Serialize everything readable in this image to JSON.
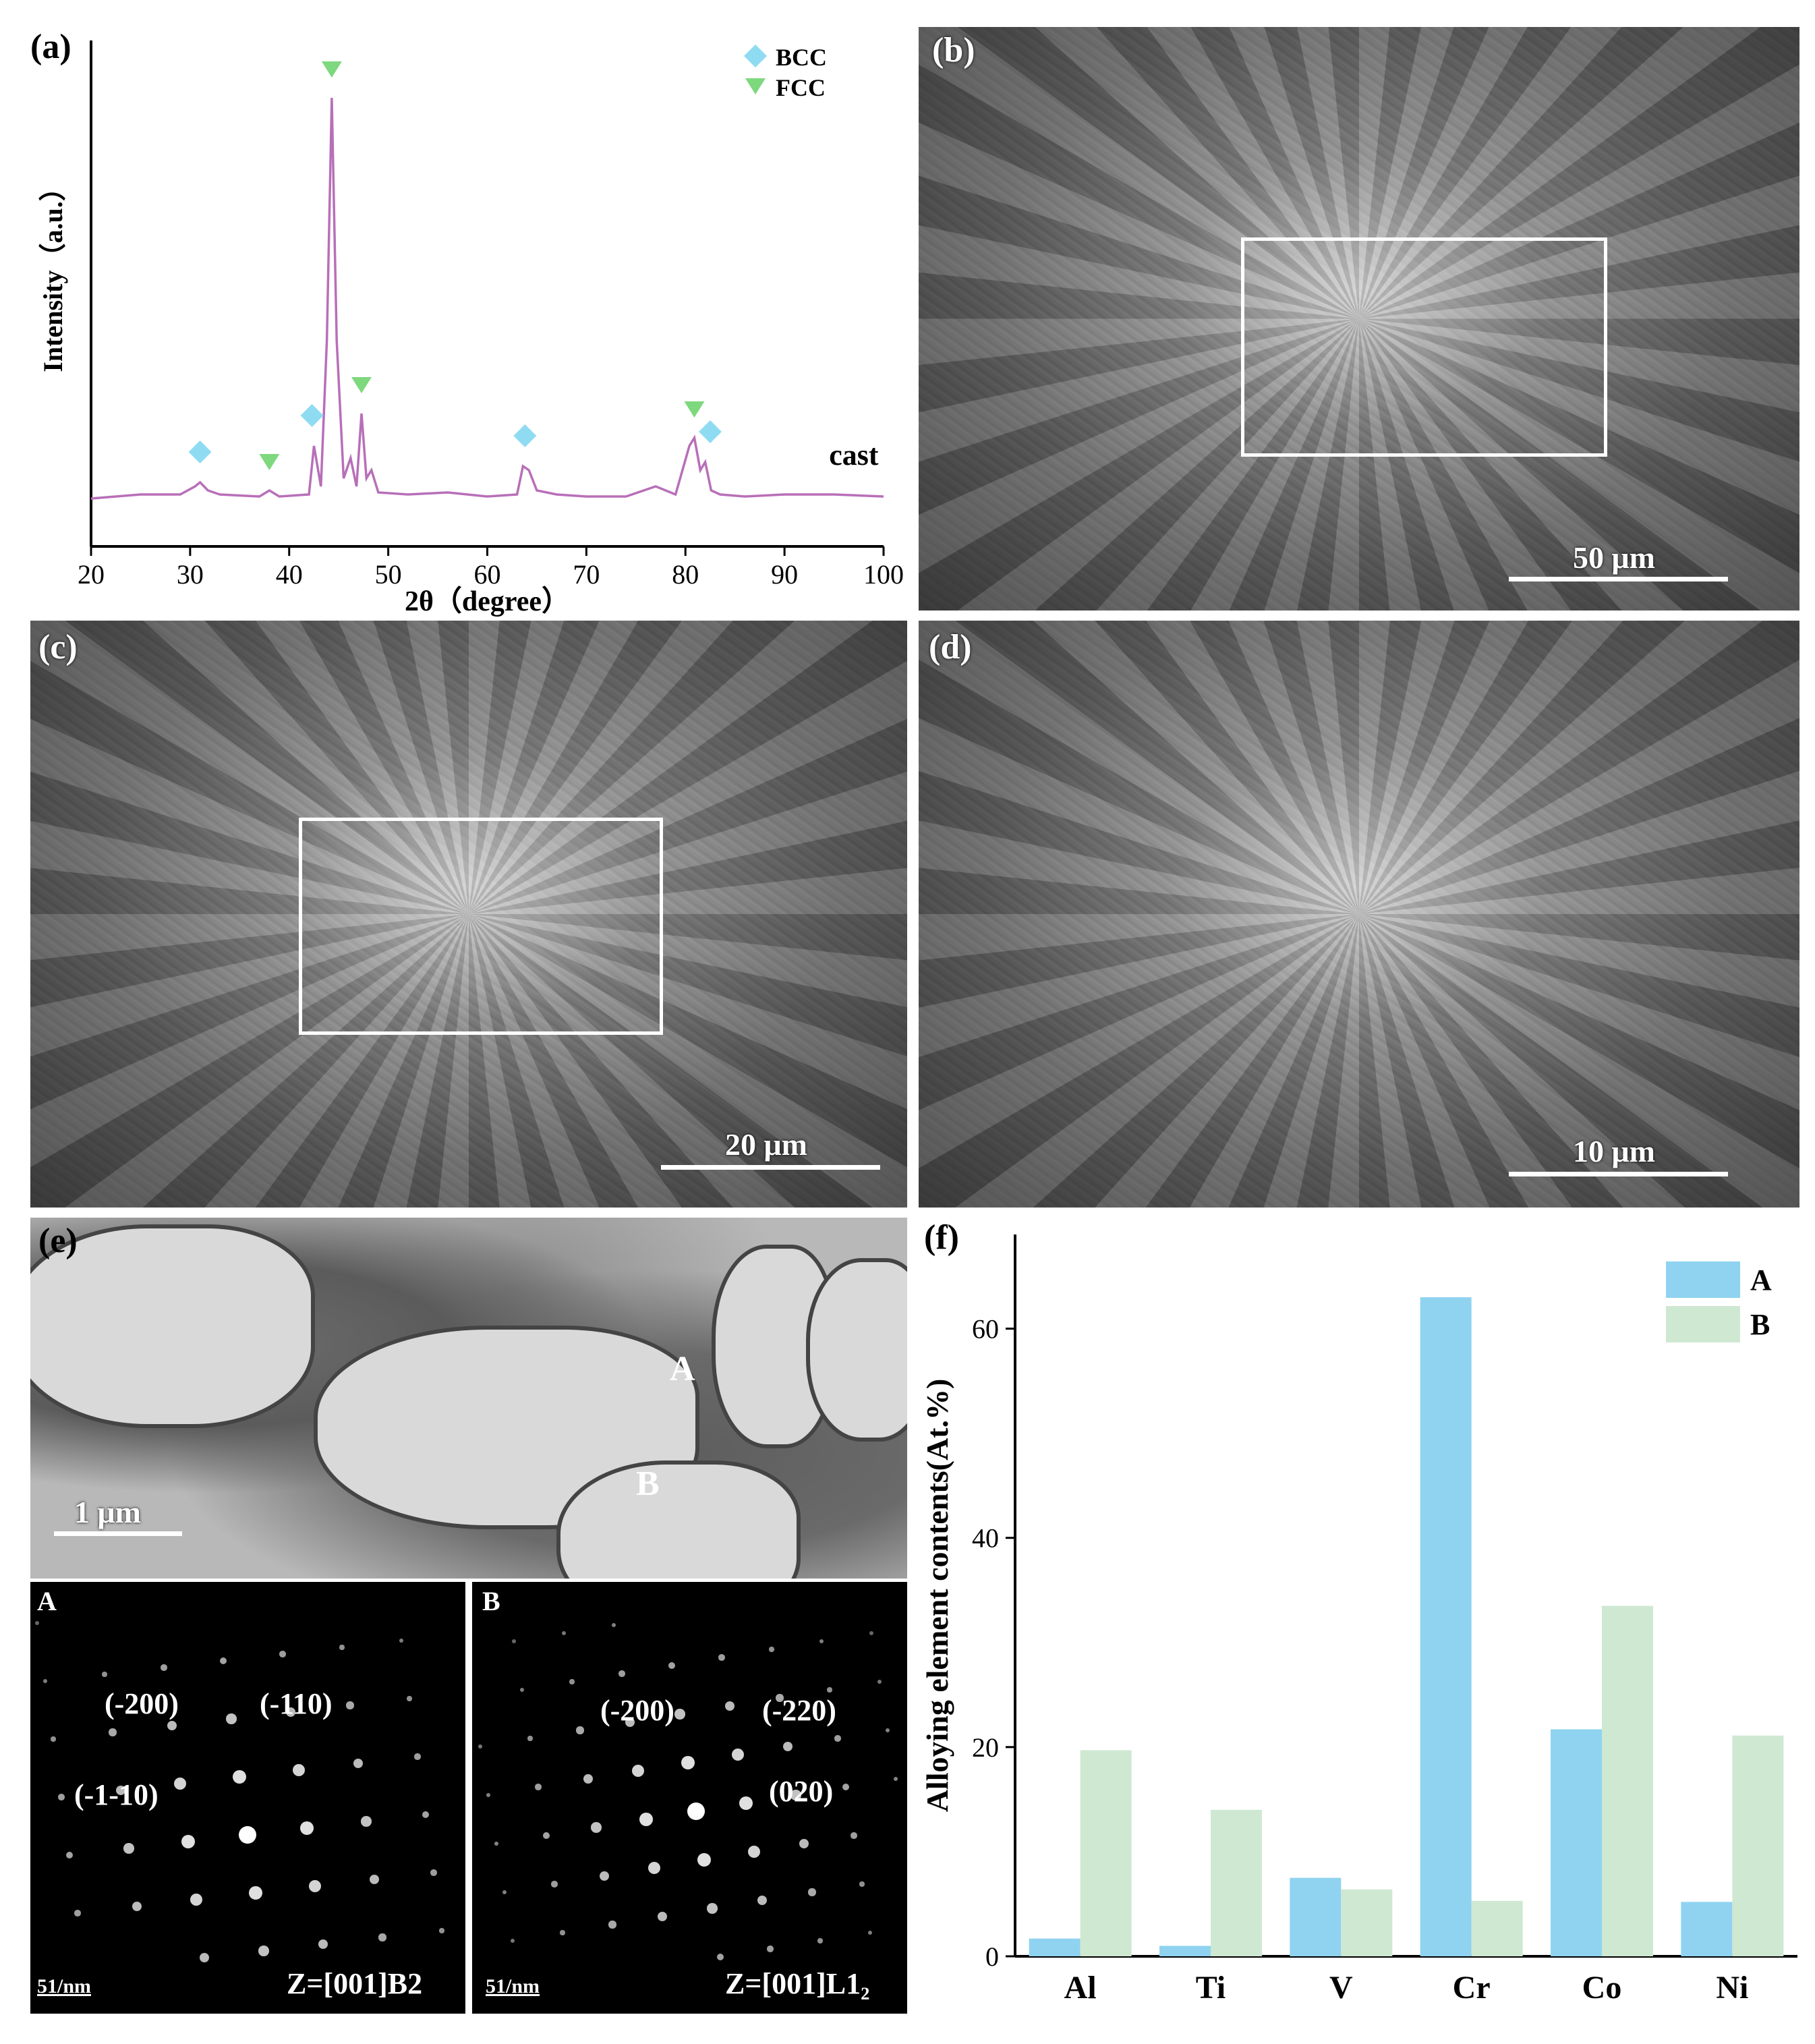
{
  "panel_labels": {
    "a": "(a)",
    "b": "(b)",
    "c": "(c)",
    "d": "(d)",
    "e": "(e)",
    "f": "(f)"
  },
  "xrd": {
    "chart_data": {
      "type": "line",
      "xlabel": "2θ（degree）",
      "ylabel": "Intensity（a.u.）",
      "xlim": [
        20,
        100
      ],
      "xticks": [
        20,
        30,
        40,
        50,
        60,
        70,
        80,
        90,
        100
      ],
      "series": [
        {
          "name": "cast",
          "color": "#b86fb8",
          "x": [
            20,
            25,
            29,
            30.5,
            31,
            31.8,
            33,
            37,
            38,
            39,
            42,
            42.5,
            43.2,
            43.8,
            44.3,
            44.8,
            45.5,
            46.2,
            46.8,
            47.3,
            47.8,
            48.3,
            49,
            52,
            56,
            60,
            63,
            63.6,
            64.2,
            65,
            67,
            70,
            74,
            77,
            79,
            80.4,
            80.9,
            81.5,
            82,
            82.6,
            83.5,
            86,
            90,
            95,
            100
          ],
          "y": [
            1,
            2,
            2,
            4,
            5,
            3,
            2,
            1.5,
            3,
            1.5,
            2,
            14,
            4,
            40,
            100,
            40,
            6,
            11,
            4,
            22,
            6,
            8,
            2.5,
            2,
            2.5,
            1.5,
            2,
            9,
            8,
            3,
            2,
            1.5,
            1.5,
            4,
            2,
            14,
            16,
            8,
            10,
            3,
            2,
            1.5,
            2,
            2,
            1.5
          ]
        }
      ],
      "annotation": "cast",
      "legend": [
        {
          "label": "BCC",
          "marker": "diamond",
          "color": "#8fdcf2"
        },
        {
          "label": "FCC",
          "marker": "triangle-down",
          "color": "#7ed87e"
        }
      ],
      "bcc_peaks": [
        31,
        42.3,
        63.8,
        82.5
      ],
      "fcc_peaks": [
        38,
        44.3,
        47.3,
        80.9
      ]
    }
  },
  "sem_b": {
    "scale": "50 μm"
  },
  "sem_c": {
    "scale": "20 μm"
  },
  "sem_d": {
    "scale": "10 μm"
  },
  "tem": {
    "scale": "1 μm",
    "region_a": "A",
    "region_b": "B"
  },
  "saed_a": {
    "title": "A",
    "zone": "Z=[001]B2",
    "scale": "51/nm",
    "labels": [
      "(-200)",
      "(-110)",
      "(-1-10)"
    ]
  },
  "saed_b": {
    "title": "B",
    "zone": "Z=[001]L1₂",
    "scale": "51/nm",
    "labels": [
      "(-200)",
      "(-220)",
      "(020)"
    ]
  },
  "composition": {
    "chart_data": {
      "type": "bar",
      "categories": [
        "Al",
        "Ti",
        "V",
        "Cr",
        "Co",
        "Ni"
      ],
      "series": [
        {
          "name": "A",
          "color": "#8fd3f0",
          "values": [
            1.7,
            1.0,
            7.5,
            63.0,
            21.7,
            5.2
          ]
        },
        {
          "name": "B",
          "color": "#cfe8d2",
          "values": [
            19.7,
            14.0,
            6.4,
            5.3,
            33.5,
            21.1
          ]
        }
      ],
      "ylabel": "Alloying element contents(At.%)",
      "ylim": [
        0,
        69
      ],
      "yticks": [
        0,
        20,
        40,
        60
      ],
      "legend": "top-right"
    }
  }
}
